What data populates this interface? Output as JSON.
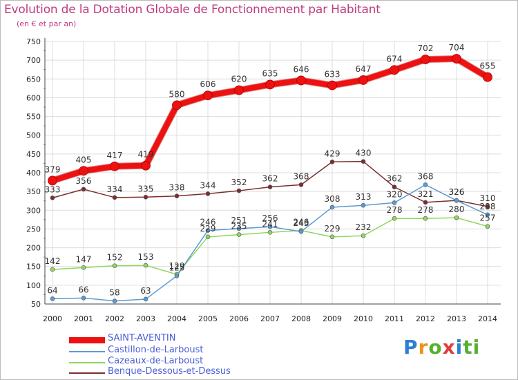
{
  "chart_data": {
    "type": "line",
    "title": "Evolution de la Dotation Globale de Fonctionnement par Habitant",
    "subtitle": "(en € et par an)",
    "x": [
      "2000",
      "2001",
      "2002",
      "2003",
      "2004",
      "2005",
      "2006",
      "2007",
      "2008",
      "2009",
      "2010",
      "2011",
      "2012",
      "2013",
      "2014"
    ],
    "y_ticks": [
      "50",
      "100",
      "150",
      "200",
      "250",
      "300",
      "350",
      "400",
      "450",
      "500",
      "550",
      "600",
      "650",
      "700",
      "750"
    ],
    "ylim": [
      50,
      750
    ],
    "grid": true,
    "legend_position": "bottom-left",
    "series": [
      {
        "name": "SAINT-AVENTIN",
        "color": "#ee1111",
        "values": [
          379,
          405,
          417,
          419,
          580,
          606,
          620,
          635,
          646,
          633,
          647,
          674,
          702,
          704,
          655
        ],
        "labels": [
          "379",
          "405",
          "417",
          "419",
          "580",
          "606",
          "620",
          "635",
          "646",
          "633",
          "647",
          "674",
          "702",
          "704",
          "655"
        ]
      },
      {
        "name": "Castillon-de-Larboust",
        "color": "#5b9bd5",
        "values": [
          64,
          66,
          58,
          63,
          125,
          246,
          251,
          256,
          243,
          308,
          313,
          320,
          368,
          326,
          288
        ],
        "labels": [
          "64",
          "66",
          "58",
          "63",
          "125",
          "246",
          "251",
          "256",
          "243",
          "308",
          "313",
          "320",
          "368",
          "326",
          "288"
        ]
      },
      {
        "name": "Cazeaux-de-Larboust",
        "color": "#8fd65e",
        "values": [
          142,
          147,
          152,
          153,
          129,
          229,
          235,
          241,
          246,
          229,
          232,
          278,
          278,
          280,
          257
        ],
        "labels": [
          "142",
          "147",
          "152",
          "153",
          "129",
          "229",
          "235",
          "241",
          "246",
          "229",
          "232",
          "278",
          "278",
          "280",
          "257"
        ]
      },
      {
        "name": "Benque-Dessous-et-Dessus",
        "color": "#7b2d2d",
        "values": [
          333,
          356,
          334,
          335,
          338,
          344,
          352,
          362,
          368,
          429,
          430,
          362,
          321,
          326,
          310
        ],
        "labels": [
          "333",
          "356",
          "334",
          "335",
          "338",
          "344",
          "352",
          "362",
          "368",
          "429",
          "430",
          "362",
          "321",
          "326",
          "310"
        ]
      }
    ]
  },
  "logo": {
    "letters": [
      "P",
      "r",
      "o",
      "x",
      "i",
      "t",
      "i"
    ]
  }
}
